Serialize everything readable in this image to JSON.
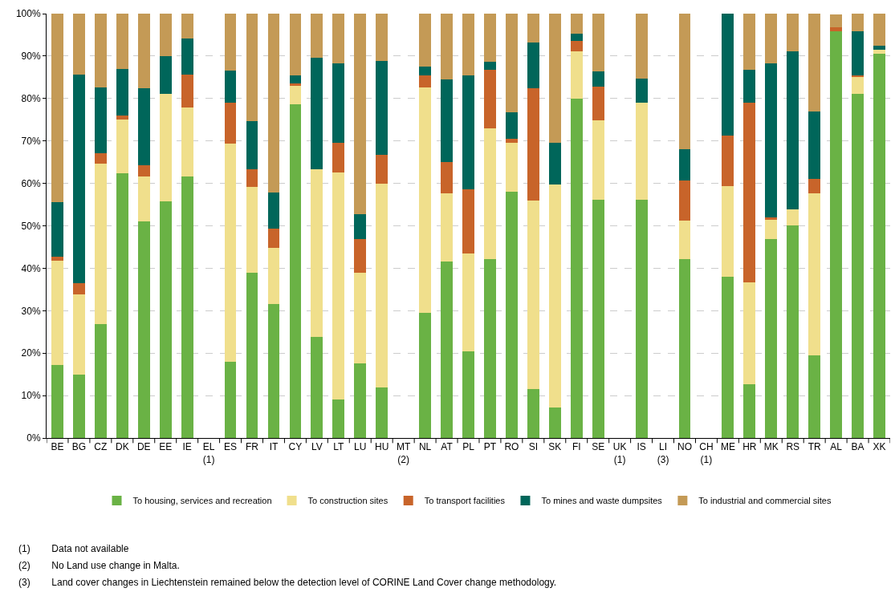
{
  "chart_data": {
    "type": "bar",
    "stacked": true,
    "categories": [
      "BE",
      "BG",
      "CZ",
      "DK",
      "DE",
      "EE",
      "IE",
      "EL\n(1)",
      "ES",
      "FR",
      "IT",
      "CY",
      "LV",
      "LT",
      "LU",
      "HU",
      "MT\n(2)",
      "NL",
      "AT",
      "PL",
      "PT",
      "RO",
      "SI",
      "SK",
      "FI",
      "SE",
      "UK\n(1)",
      "IS",
      "LI\n(3)",
      "NO",
      "CH\n(1)",
      "ME",
      "HR",
      "MK",
      "RS",
      "TR",
      "AL",
      "BA",
      "XK"
    ],
    "series": [
      {
        "name": "To housing, services and recreation",
        "color": "#6ab245",
        "values": [
          17.2,
          15,
          26.9,
          62.3,
          51.1,
          55.8,
          61.7,
          null,
          17.9,
          39,
          31.6,
          78.6,
          23.9,
          9.1,
          17.5,
          11.9,
          null,
          29.4,
          41.6,
          20.4,
          42.1,
          58.1,
          11.6,
          7.1,
          80,
          56.2,
          null,
          56.2,
          null,
          42.2,
          null,
          38,
          12.7,
          46.8,
          50.1,
          19.4,
          95.9,
          81.1,
          90.6
        ]
      },
      {
        "name": "To construction sites",
        "color": "#f0df8c",
        "values": [
          24.5,
          18.8,
          37.8,
          12.7,
          10.5,
          25.3,
          16.1,
          null,
          51.4,
          20.2,
          13.2,
          4.3,
          39.5,
          53.4,
          21.5,
          48,
          null,
          53.3,
          16,
          23,
          30.9,
          11.4,
          44.3,
          52.7,
          11.1,
          18.6,
          null,
          22.9,
          null,
          9,
          null,
          21.3,
          24,
          4.8,
          3.8,
          38.3,
          null,
          3.9,
          0.9
        ]
      },
      {
        "name": "To transport facilities",
        "color": "#c8642a",
        "values": [
          1.1,
          2.6,
          2.5,
          1,
          2.7,
          0,
          7.8,
          null,
          9.8,
          4.2,
          4.5,
          0.7,
          0,
          7,
          7.9,
          6.9,
          null,
          2.7,
          7.4,
          15.2,
          13.7,
          1.1,
          26.5,
          0,
          2.5,
          8,
          null,
          0,
          null,
          9.4,
          null,
          11.9,
          42.4,
          0.3,
          0,
          3.3,
          0.9,
          0.5,
          0
        ]
      },
      {
        "name": "To mines and waste dumpsites",
        "color": "#00665a",
        "values": [
          12.8,
          49.2,
          15.5,
          11,
          18.1,
          8.8,
          8.5,
          null,
          7.5,
          11.2,
          8.5,
          1.8,
          26.2,
          18.8,
          5.8,
          22,
          null,
          2.2,
          19.5,
          26.8,
          2,
          6.1,
          10.8,
          9.7,
          1.6,
          3.6,
          null,
          5.6,
          null,
          7.5,
          null,
          28.8,
          7.6,
          36.3,
          37.3,
          16,
          0,
          10.4,
          0.9
        ]
      },
      {
        "name": "To industrial and commercial sites",
        "color": "#c49a56",
        "values": [
          44.4,
          14.4,
          17.3,
          13,
          17.6,
          10.1,
          5.9,
          null,
          13.4,
          25.4,
          42.2,
          14.6,
          10.4,
          11.7,
          47.3,
          11.2,
          null,
          12.4,
          15.5,
          14.6,
          11.3,
          23.3,
          6.8,
          30.5,
          4.8,
          13.6,
          null,
          15.3,
          null,
          31.9,
          null,
          0,
          13.3,
          11.8,
          8.8,
          23,
          3,
          4.1,
          7.6
        ]
      }
    ],
    "ylim": [
      0,
      100
    ],
    "yticks": [
      {
        "value": 0,
        "label": "0%"
      },
      {
        "value": 10,
        "label": "10%"
      },
      {
        "value": 20,
        "label": "20%"
      },
      {
        "value": 30,
        "label": "30%"
      },
      {
        "value": 40,
        "label": "40%"
      },
      {
        "value": 50,
        "label": "50%"
      },
      {
        "value": 60,
        "label": "60%"
      },
      {
        "value": 70,
        "label": "70%"
      },
      {
        "value": 80,
        "label": "80%"
      },
      {
        "value": 90,
        "label": "90%"
      },
      {
        "value": 100,
        "label": "100%"
      }
    ],
    "grid": "y",
    "legend": "bottom",
    "annotations": [
      "(1)    Data not available",
      "(2)    No Land use change in Malta.",
      "(3)    Land cover changes in Liechtenstein remained below the detection level of CORINE Land Cover change methodology."
    ]
  }
}
